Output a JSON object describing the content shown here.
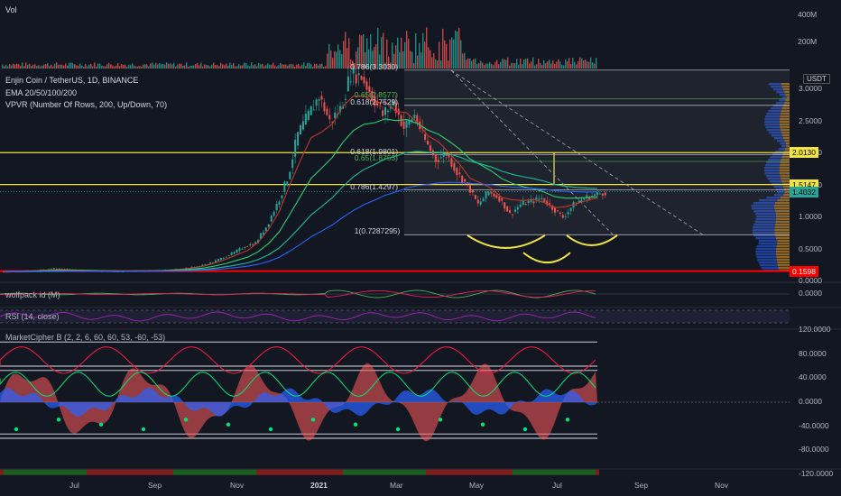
{
  "header": {
    "vol_label": "Vol",
    "symbol_line": "Enjin Coin / TetherUS, 1D, BINANCE",
    "ema_line": "EMA 20/50/100/200",
    "vpvr_line": "VPVR (Number Of Rows, 200, Up/Down, 70)",
    "currency": "USDT"
  },
  "indicators": {
    "wolfpack": "wolfpack id (M)",
    "rsi": "RSI (14, close)",
    "market_cipher": "MarketCipher B (2, 2, 6, 60, 60, 53, -60, -53)"
  },
  "colors": {
    "background": "#131722",
    "yellow": "#f0e442",
    "red": "#ff0000",
    "up": "#26a69a",
    "down": "#ef5350",
    "ema20": "#c0392b",
    "ema50": "#2ecc71",
    "ema100": "#2ecc71",
    "ema200": "#2962ff"
  },
  "chart_data": [
    {
      "type": "bar",
      "name": "volume",
      "ticks": [
        "400M",
        "200M"
      ]
    },
    {
      "type": "candlestick",
      "name": "price",
      "x_ticks": [
        "Jul",
        "Sep",
        "Nov",
        "2021",
        "Mar",
        "May",
        "Jul",
        "Sep",
        "Nov"
      ],
      "y_ticks": [
        "3.0000",
        "2.5000",
        "2.0000",
        "1.5000",
        "1.0000",
        "0.5000",
        "0.0000"
      ],
      "ylim": [
        0,
        3.3
      ],
      "price_tags": [
        {
          "label": "2.0130",
          "value": 2.013,
          "color": "#f0e442"
        },
        {
          "label": "1.5147",
          "value": 1.5147,
          "color": "#f0e442"
        },
        {
          "label": "1.4032",
          "value": 1.4032,
          "color": "#26a69a"
        },
        {
          "label": "0.1598",
          "value": 0.1598,
          "color": "#ff0000"
        }
      ],
      "horizontal_levels": [
        2.013,
        1.5147,
        0.1598
      ],
      "fib_levels": [
        {
          "label": "0.786(3.3030)",
          "value": 3.303,
          "color": "#d1d4dc"
        },
        {
          "label": "0.65(2.8577)",
          "value": 2.8577,
          "color": "#4caf50"
        },
        {
          "label": "0.618(2.7529)",
          "value": 2.7529,
          "color": "#d1d4dc"
        },
        {
          "label": "0.618(1.9801)",
          "value": 1.9801,
          "color": "#d1d4dc"
        },
        {
          "label": "0.65(1.8753)",
          "value": 1.8753,
          "color": "#4caf50"
        },
        {
          "label": "0.786(1.4297)",
          "value": 1.4297,
          "color": "#d1d4dc"
        },
        {
          "label": "1(0.7287295)",
          "value": 0.7287,
          "color": "#d1d4dc"
        }
      ],
      "series": [
        {
          "name": "close",
          "values": [
            0.15,
            0.16,
            0.17,
            0.18,
            0.2,
            0.19,
            0.18,
            0.17,
            0.16,
            0.16,
            0.15,
            0.16,
            0.16,
            0.17,
            0.17,
            0.18,
            0.2,
            0.22,
            0.25,
            0.3,
            0.38,
            0.45,
            0.55,
            0.6,
            0.85,
            1.2,
            1.6,
            2.3,
            2.6,
            2.9,
            2.5,
            2.7,
            3.25,
            3.2,
            2.9,
            2.6,
            2.8,
            2.4,
            2.6,
            2.2,
            1.9,
            2.0,
            1.7,
            1.5,
            1.2,
            1.4,
            1.3,
            1.05,
            1.2,
            1.25,
            1.3,
            1.15,
            1.0,
            1.2,
            1.3,
            1.35,
            1.4
          ]
        }
      ]
    },
    {
      "type": "line",
      "name": "market_cipher_b",
      "y_ticks": [
        "120.0000",
        "80.0000",
        "40.0000",
        "0.0000",
        "-40.0000",
        "-80.0000",
        "-120.0000"
      ],
      "ylim": [
        -120,
        120
      ],
      "reference_levels": [
        100,
        60,
        53,
        0,
        -53,
        -60
      ]
    }
  ]
}
